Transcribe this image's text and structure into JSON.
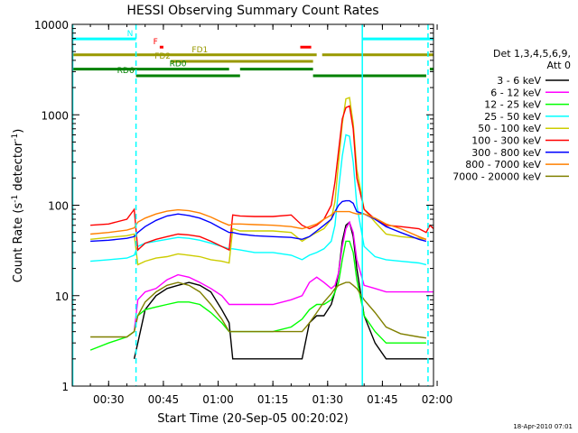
{
  "chart_data": {
    "type": "line",
    "title": "HESSI Observing Summary Count Rates",
    "xlabel": "Start Time (20-Sep-05 00:20:02)",
    "ylabel": "Count Rate (s⁻¹ detector⁻¹)",
    "ylabel_parts": {
      "main": "Count Rate (s",
      "sup1": "-1",
      "mid": " detector",
      "sup2": "-1",
      "end": ")"
    },
    "y_scale": "log",
    "ylim": [
      1,
      10000
    ],
    "xlim": [
      "00:20:02",
      "01:59:00"
    ],
    "x_ticks": [
      "00:30",
      "00:45",
      "01:00",
      "01:15",
      "01:30",
      "01:45",
      "02:00"
    ],
    "y_ticks": [
      "1",
      "10",
      "100",
      "1000",
      "10000"
    ],
    "legend_header": [
      "Det 1,3,4,5,6,9,",
      "Att 0"
    ],
    "legend_position": "right",
    "footer_date": "18-Apr-2010 07:01",
    "grid": false,
    "flags": [
      {
        "label": "N",
        "color": "#00ffff",
        "y": 6900,
        "segments": [
          [
            "00:20:02",
            "00:37:30"
          ],
          [
            "01:39:30",
            "01:59:00"
          ]
        ]
      },
      {
        "label": "F",
        "color": "#ff0000",
        "y": 5600,
        "segments": [
          [
            "00:44:00",
            "00:45:00"
          ],
          [
            "01:22:30",
            "01:25:30"
          ]
        ]
      },
      {
        "label": "FD1",
        "color": "#999900",
        "y": 4600,
        "segments": [
          [
            "00:20:02",
            "01:27:00"
          ],
          [
            "01:28:30",
            "01:59:00"
          ]
        ]
      },
      {
        "label": "FD2",
        "color": "#999900",
        "y": 3900,
        "segments": [
          [
            "00:47:00",
            "01:26:00"
          ]
        ]
      },
      {
        "label": "RD0",
        "color": "#008000",
        "y": 3200,
        "segments": [
          [
            "00:20:02",
            "01:03:00"
          ],
          [
            "01:06:00",
            "01:26:00"
          ],
          [
            "01:58:00",
            "01:59:00"
          ]
        ]
      },
      {
        "label": "RD6",
        "color": "#008000",
        "y": 2700,
        "segments": [
          [
            "00:37:30",
            "01:06:00"
          ],
          [
            "01:26:00",
            "01:57:00"
          ]
        ]
      }
    ],
    "vlines": [
      {
        "color": "#00ffff",
        "style": "solid",
        "x": "00:20:10"
      },
      {
        "color": "#00ffff",
        "style": "dashed",
        "x": "00:37:30"
      },
      {
        "color": "#00ffff",
        "style": "solid",
        "x": "01:39:30"
      },
      {
        "color": "#00ffff",
        "style": "dashed",
        "x": "01:57:30"
      }
    ],
    "x": [
      "00:20",
      "00:25",
      "00:30",
      "00:35",
      "00:37",
      "00:38",
      "00:40",
      "00:43",
      "00:46",
      "00:49",
      "00:52",
      "00:55",
      "00:58",
      "01:01",
      "01:03",
      "01:04",
      "01:06",
      "01:10",
      "01:15",
      "01:20",
      "01:23",
      "01:25",
      "01:27",
      "01:29",
      "01:31",
      "01:32",
      "01:33",
      "01:34",
      "01:35",
      "01:36",
      "01:37",
      "01:38",
      "01:40",
      "01:43",
      "01:46",
      "01:50",
      "01:55",
      "01:57",
      "01:58",
      "01:59"
    ],
    "series": [
      {
        "name": "3 - 6 keV",
        "color": "#000000",
        "values": [
          null,
          null,
          null,
          null,
          2,
          3,
          7,
          10,
          12,
          13,
          14,
          13,
          11,
          7,
          5,
          2,
          2,
          2,
          2,
          2,
          2,
          5,
          6,
          6,
          8,
          11,
          18,
          40,
          60,
          65,
          45,
          20,
          6,
          3,
          2,
          2,
          2,
          2,
          2,
          2
        ]
      },
      {
        "name": "6 - 12 keV",
        "color": "#ff00ff",
        "values": [
          null,
          null,
          null,
          null,
          4,
          9,
          11,
          12,
          15,
          17,
          16,
          14,
          12,
          10,
          8,
          8,
          8,
          8,
          8,
          9,
          10,
          14,
          16,
          14,
          12,
          13,
          18,
          35,
          55,
          65,
          50,
          25,
          13,
          12,
          11,
          11,
          11,
          11,
          11,
          11
        ]
      },
      {
        "name": "12 - 25 keV",
        "color": "#00ff00",
        "values": [
          null,
          2.5,
          3,
          3.5,
          4,
          6,
          7,
          7.5,
          8,
          8.5,
          8.5,
          8,
          6.5,
          5,
          4,
          4,
          4,
          4,
          4,
          4.5,
          5.5,
          7,
          8,
          8,
          9,
          11,
          14,
          25,
          40,
          40,
          30,
          15,
          6,
          4,
          3,
          3,
          3,
          3,
          null,
          null
        ]
      },
      {
        "name": "25 - 50 keV",
        "color": "#00ffff",
        "values": [
          null,
          24,
          25,
          26,
          28,
          35,
          38,
          40,
          42,
          44,
          43,
          41,
          38,
          35,
          33,
          33,
          32,
          30,
          30,
          28,
          25,
          28,
          30,
          33,
          40,
          60,
          150,
          350,
          600,
          580,
          300,
          100,
          35,
          27,
          25,
          24,
          23,
          22,
          null,
          null
        ]
      },
      {
        "name": "50 - 100 keV",
        "color": "#cccc00",
        "values": [
          null,
          42,
          44,
          46,
          48,
          22,
          24,
          26,
          27,
          29,
          28,
          27,
          25,
          24,
          23,
          55,
          52,
          52,
          52,
          50,
          40,
          45,
          50,
          55,
          70,
          110,
          300,
          800,
          1500,
          1550,
          800,
          250,
          90,
          65,
          48,
          45,
          43,
          42,
          null,
          null
        ]
      },
      {
        "name": "100 - 300 keV",
        "color": "#ff0000",
        "values": [
          null,
          60,
          62,
          70,
          90,
          32,
          38,
          42,
          45,
          48,
          47,
          45,
          40,
          35,
          32,
          78,
          76,
          75,
          75,
          78,
          60,
          55,
          60,
          70,
          100,
          180,
          400,
          900,
          1200,
          1250,
          700,
          200,
          90,
          70,
          60,
          58,
          55,
          50,
          60,
          55
        ]
      },
      {
        "name": "300 - 800 keV",
        "color": "#0000ff",
        "values": [
          null,
          40,
          41,
          43,
          45,
          50,
          58,
          68,
          76,
          80,
          77,
          72,
          64,
          55,
          50,
          50,
          48,
          46,
          45,
          44,
          42,
          45,
          52,
          60,
          70,
          85,
          100,
          110,
          112,
          112,
          105,
          85,
          80,
          70,
          58,
          50,
          42,
          40,
          null,
          null
        ]
      },
      {
        "name": "800 - 7000 keV",
        "color": "#ff8000",
        "values": [
          null,
          48,
          50,
          53,
          56,
          65,
          72,
          80,
          86,
          89,
          87,
          82,
          74,
          65,
          60,
          62,
          62,
          61,
          60,
          58,
          55,
          58,
          62,
          70,
          78,
          85,
          85,
          85,
          85,
          85,
          82,
          80,
          80,
          72,
          62,
          55,
          45,
          42,
          null,
          null
        ]
      },
      {
        "name": "7000 - 20000 keV",
        "color": "#808000",
        "values": [
          null,
          3.5,
          3.5,
          3.5,
          4,
          6,
          8.5,
          11,
          13,
          14,
          13,
          11,
          8,
          5.5,
          4,
          4,
          4,
          4,
          4,
          4,
          4,
          5,
          6.5,
          8.5,
          10.5,
          12,
          13,
          13.5,
          14,
          14,
          13,
          12,
          9,
          6.5,
          4.5,
          3.8,
          3.5,
          3.4,
          null,
          null
        ]
      }
    ]
  }
}
